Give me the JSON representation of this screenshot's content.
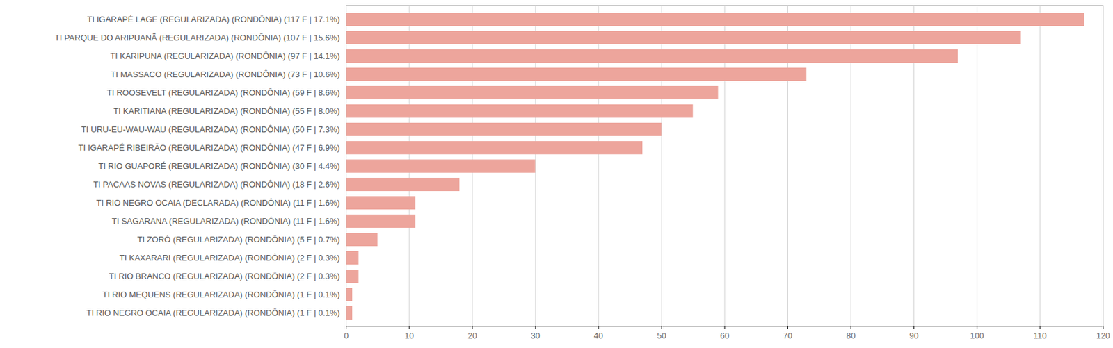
{
  "chart_data": {
    "type": "bar",
    "orientation": "horizontal",
    "categories": [
      "TI IGARAPÉ LAGE (REGULARIZADA) (RONDÔNIA) (117 F | 17.1%)",
      "TI PARQUE DO ARIPUANÃ (REGULARIZADA) (RONDÔNIA) (107 F | 15.6%)",
      "TI KARIPUNA (REGULARIZADA) (RONDÔNIA) (97 F | 14.1%)",
      "TI MASSACO (REGULARIZADA) (RONDÔNIA) (73 F | 10.6%)",
      "TI ROOSEVELT (REGULARIZADA) (RONDÔNIA) (59 F | 8.6%)",
      "TI KARITIANA (REGULARIZADA) (RONDÔNIA) (55 F | 8.0%)",
      "TI URU-EU-WAU-WAU (REGULARIZADA) (RONDÔNIA) (50 F | 7.3%)",
      "TI IGARAPÉ RIBEIRÃO (REGULARIZADA) (RONDÔNIA) (47 F | 6.9%)",
      "TI RIO GUAPORÉ (REGULARIZADA) (RONDÔNIA) (30 F | 4.4%)",
      "TI PACAAS NOVAS (REGULARIZADA) (RONDÔNIA) (18 F | 2.6%)",
      "TI RIO NEGRO OCAIA (DECLARADA) (RONDÔNIA) (11 F | 1.6%)",
      "TI SAGARANA (REGULARIZADA) (RONDÔNIA) (11 F | 1.6%)",
      "TI ZORÓ (REGULARIZADA) (RONDÔNIA) (5 F | 0.7%)",
      "TI KAXARARI (REGULARIZADA) (RONDÔNIA) (2 F | 0.3%)",
      "TI RIO BRANCO (REGULARIZADA) (RONDÔNIA) (2 F | 0.3%)",
      "TI RIO MEQUENS (REGULARIZADA) (RONDÔNIA) (1 F | 0.1%)",
      "TI RIO NEGRO OCAIA (REGULARIZADA) (RONDÔNIA) (1 F | 0.1%)"
    ],
    "values": [
      117,
      107,
      97,
      73,
      59,
      55,
      50,
      47,
      30,
      18,
      11,
      11,
      5,
      2,
      2,
      1,
      1
    ],
    "color": "#eda59c",
    "xlim": [
      0,
      120
    ],
    "xticks": [
      0,
      10,
      20,
      30,
      40,
      50,
      60,
      70,
      80,
      90,
      100,
      110,
      120
    ],
    "grid": true
  }
}
